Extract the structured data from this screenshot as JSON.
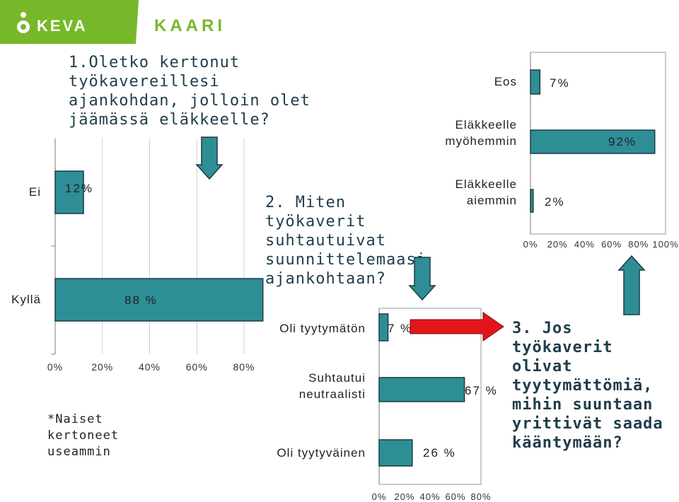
{
  "colors": {
    "bar_fill": "#2e8e96",
    "bar_stroke": "#1d3a43",
    "header_green": "#77b82a",
    "down_arrow": "#2e8e96",
    "right_arrow": "#e2161a",
    "logo_kaari": "#77b82a"
  },
  "header": {
    "logo_keva": "KEVA",
    "logo_kaari": "KAARI"
  },
  "questions": {
    "q1": "1.Oletko kertonut\ntyökavereillesi\najankohdan, jolloin olet\njäämässä eläkkeelle?",
    "q2": "2. Miten työkaverit\nsuhtautuivat\nsuunnittelemaasi\najankohtaan?",
    "q3": "3. Jos työkaverit\nolivat\ntyytymättömiä,\nmihin suuntaan\nyrittivät saada\nkääntymään?"
  },
  "note": "*Naiset\nkertoneet\nuseammin",
  "chart_data": [
    {
      "id": "q1",
      "type": "bar",
      "orientation": "horizontal",
      "categories": [
        "Ei",
        "Kyllä"
      ],
      "values": [
        12,
        88
      ],
      "value_labels": [
        "12%",
        "88 %"
      ],
      "xlim": [
        0,
        80
      ],
      "ticks": [
        "0%",
        "20%",
        "40%",
        "60%",
        "80%"
      ]
    },
    {
      "id": "q2",
      "type": "bar",
      "orientation": "horizontal",
      "categories": [
        "Eos",
        "Eläkkeelle myöhemmin",
        "Eläkkeelle aiemmin"
      ],
      "values": [
        7,
        92,
        2
      ],
      "value_labels": [
        "7%",
        "92%",
        "2%"
      ],
      "xlim": [
        0,
        100
      ],
      "ticks": [
        "0%",
        "20%",
        "40%",
        "60%",
        "80%",
        "100%"
      ]
    },
    {
      "id": "q3",
      "type": "bar",
      "orientation": "horizontal",
      "categories": [
        "Oli tyytymätön",
        "Suhtautui neutraalisti",
        "Oli tyytyväinen"
      ],
      "values": [
        7,
        67,
        26
      ],
      "value_labels": [
        "7 %",
        "67 %",
        "26 %"
      ],
      "xlim": [
        0,
        80
      ],
      "ticks": [
        "0%",
        "20%",
        "40%",
        "60%",
        "80%"
      ]
    }
  ]
}
